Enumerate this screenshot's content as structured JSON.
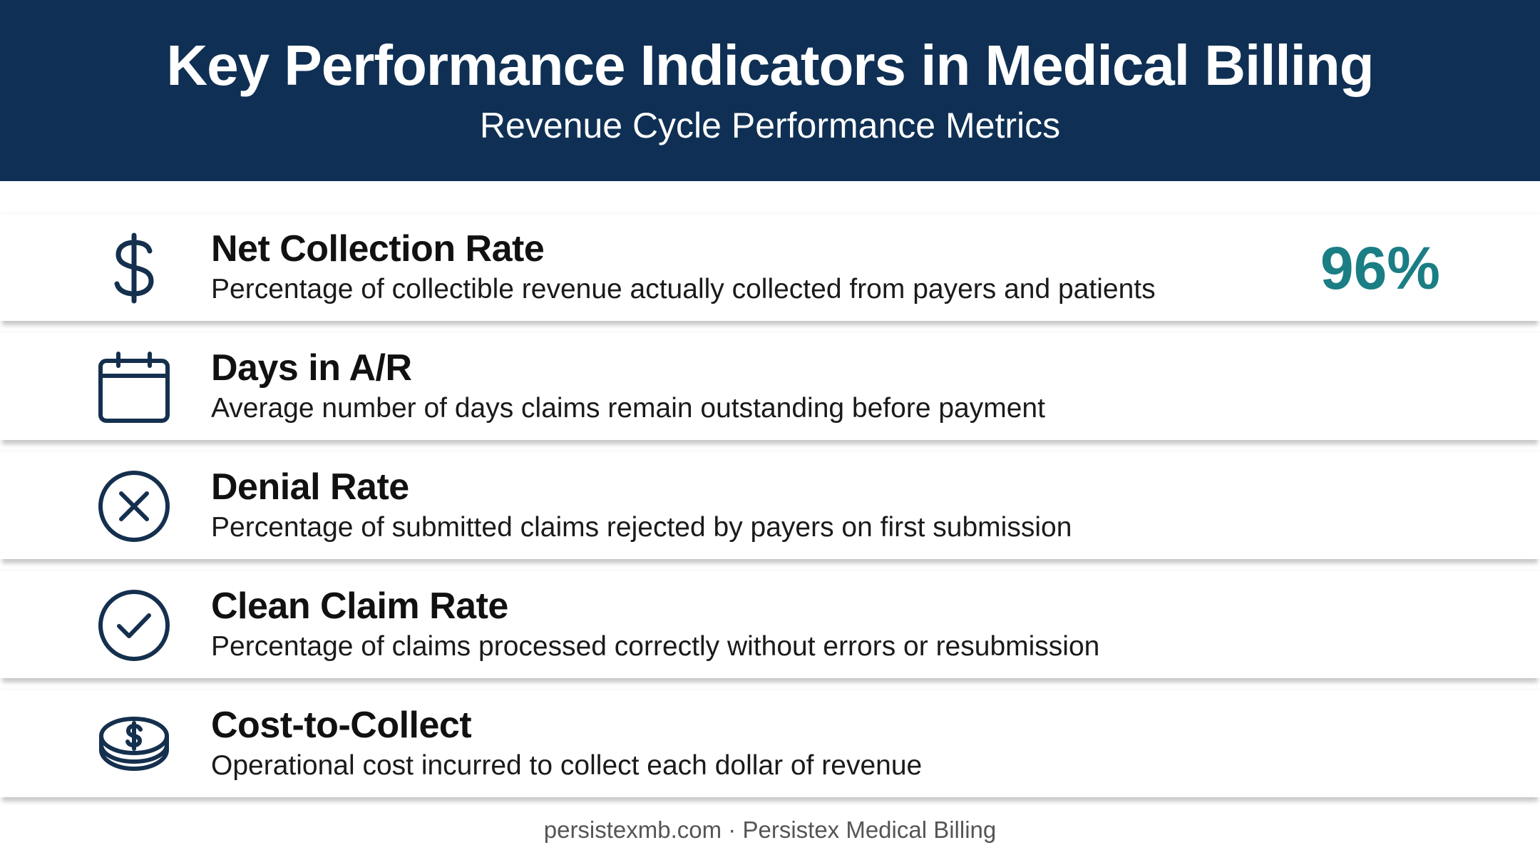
{
  "header": {
    "title": "Key Performance Indicators in Medical Billing",
    "subtitle": "Revenue Cycle Performance Metrics"
  },
  "colors": {
    "header_background": "#0f3054",
    "icon_stroke": "#15304e",
    "value_accent": "#1a7e84"
  },
  "kpis": [
    {
      "icon": "dollar-sign-icon",
      "title": "Net Collection Rate",
      "description": "Percentage of collectible revenue actually collected from payers and patients",
      "value": "96%"
    },
    {
      "icon": "calendar-icon",
      "title": "Days in A/R",
      "description": "Average number of days claims remain outstanding before payment"
    },
    {
      "icon": "x-circle-icon",
      "title": "Denial Rate",
      "description": "Percentage of submitted claims rejected by payers on first submission"
    },
    {
      "icon": "check-circle-icon",
      "title": "Clean Claim Rate",
      "description": "Percentage of claims processed correctly without errors or resubmission"
    },
    {
      "icon": "coin-stack-icon",
      "title": "Cost-to-Collect",
      "description": "Operational cost incurred to collect each dollar of revenue"
    }
  ],
  "footer": {
    "text": "persistexmb.com · Persistex Medical Billing"
  }
}
